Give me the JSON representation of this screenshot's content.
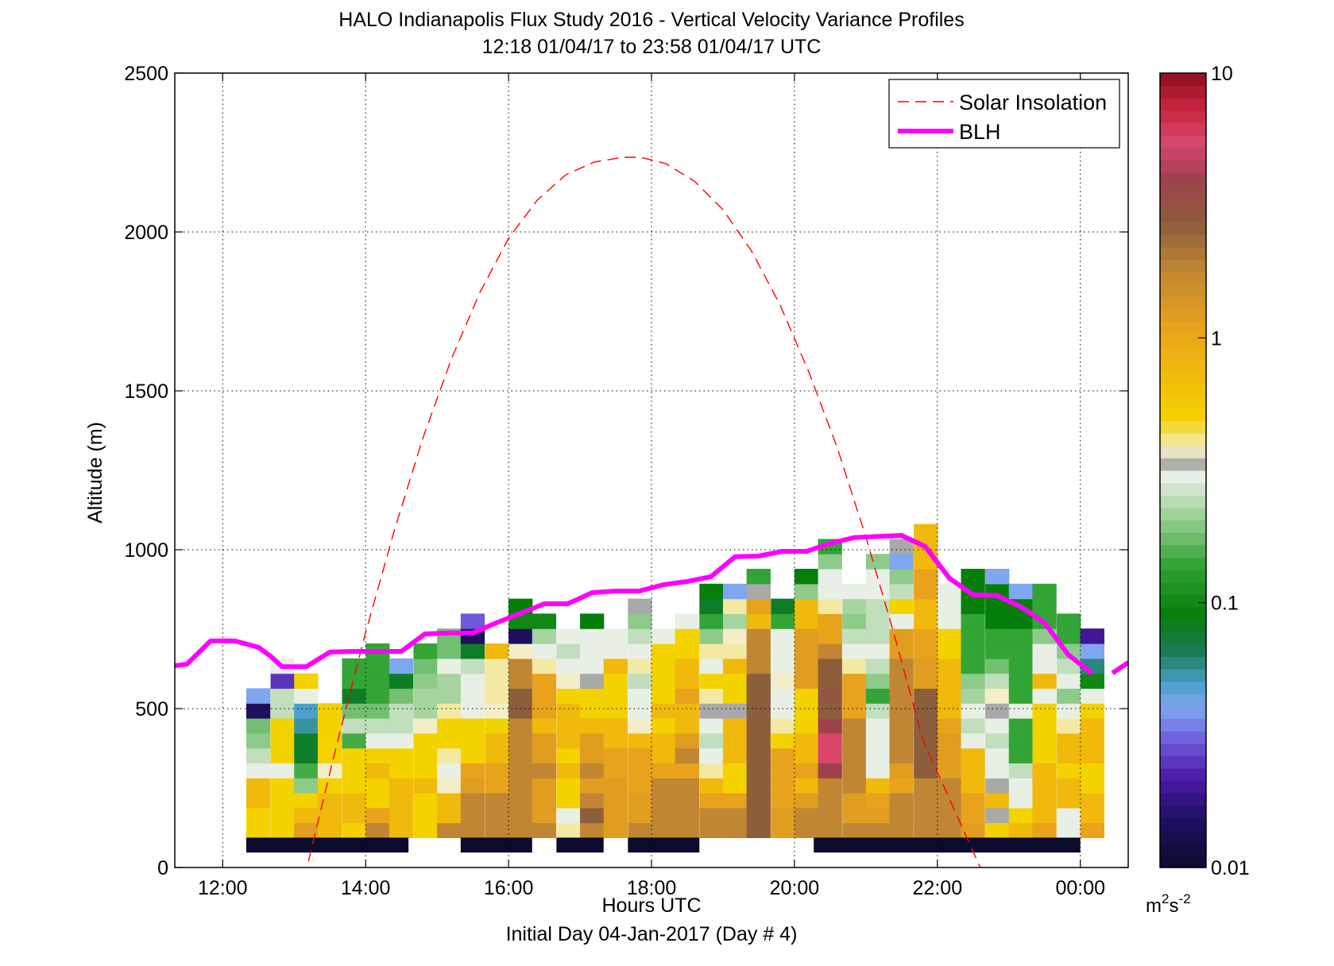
{
  "chart_data": {
    "type": "heatmap",
    "title": "HALO Indianapolis Flux Study 2016 - Vertical Velocity Variance Profiles",
    "subtitle": "12:18 01/04/17 to 23:58 01/04/17  UTC",
    "xlabel": "Hours UTC",
    "xlabel2": "Initial Day 04-Jan-2017 (Day # 4)",
    "ylabel": "Altitude (m)",
    "colorbar_unit": "m",
    "colorbar_unit_sup1": "2",
    "colorbar_unit_mid": "s",
    "colorbar_unit_sup2": "-2",
    "xlim": [
      11.33,
      24.67
    ],
    "ylim": [
      0,
      2500
    ],
    "grid": true,
    "x_ticks": [
      12,
      14,
      16,
      18,
      20,
      22,
      24
    ],
    "x_tick_labels": [
      "12:00",
      "14:00",
      "16:00",
      "18:00",
      "20:00",
      "22:00",
      "00:00"
    ],
    "y_ticks": [
      0,
      500,
      1000,
      1500,
      2000,
      2500
    ],
    "y_tick_labels": [
      "0",
      "500",
      "1000",
      "1500",
      "2000",
      "2500"
    ],
    "colorbar_scale": "log",
    "colorbar_range": [
      0.01,
      10
    ],
    "colorbar_ticks": [
      0.01,
      0.1,
      1,
      10
    ],
    "colorbar_tick_labels": [
      "0.01",
      "0.1",
      "1",
      "10"
    ],
    "colorbar_stops": [
      {
        "v": 0.01,
        "color": "#0b0b2e"
      },
      {
        "v": 0.015,
        "color": "#1e0f5e"
      },
      {
        "v": 0.022,
        "color": "#4d1aa8"
      },
      {
        "v": 0.03,
        "color": "#6f5ad8"
      },
      {
        "v": 0.04,
        "color": "#7fa6f0"
      },
      {
        "v": 0.05,
        "color": "#4aa0c8"
      },
      {
        "v": 0.065,
        "color": "#1e7a5a"
      },
      {
        "v": 0.09,
        "color": "#057f0a"
      },
      {
        "v": 0.14,
        "color": "#33a436"
      },
      {
        "v": 0.22,
        "color": "#a6d4a0"
      },
      {
        "v": 0.3,
        "color": "#e8efe4"
      },
      {
        "v": 0.33,
        "color": "#a9a9a9"
      },
      {
        "v": 0.38,
        "color": "#f4eec8"
      },
      {
        "v": 0.5,
        "color": "#f3d200"
      },
      {
        "v": 0.75,
        "color": "#f0b90c"
      },
      {
        "v": 1.1,
        "color": "#e8a21c"
      },
      {
        "v": 1.8,
        "color": "#c08633"
      },
      {
        "v": 2.7,
        "color": "#8c5e3c"
      },
      {
        "v": 4.0,
        "color": "#a0424e"
      },
      {
        "v": 5.5,
        "color": "#d8466e"
      },
      {
        "v": 7.5,
        "color": "#c4243c"
      },
      {
        "v": 10,
        "color": "#8e0c1c"
      }
    ],
    "bin_width_hours": 0.33,
    "bin_height_m": 47,
    "first_bin_altitude_m": 94,
    "columns": [
      {
        "t": 12.33,
        "v": [
          0.5,
          0.5,
          0.75,
          0.75,
          0.3,
          0.25,
          0.2,
          0.18,
          0.015,
          0.04
        ]
      },
      {
        "t": 12.67,
        "v": [
          0.5,
          0.5,
          0.5,
          0.5,
          0.3,
          0.5,
          0.5,
          0.5,
          0.25,
          0.25,
          0.025,
          0.3
        ]
      },
      {
        "t": 13.0,
        "v": [
          1.2,
          0.75,
          0.5,
          0.2,
          0.15,
          0.08,
          0.08,
          0.055,
          0.05,
          0.3,
          0.5
        ]
      },
      {
        "t": 13.33,
        "v": [
          0.75,
          0.75,
          0.75,
          0.5,
          0.38,
          0.5,
          0.5,
          0.5,
          0.5
        ]
      },
      {
        "t": 13.67,
        "v": [
          0.5,
          0.75,
          0.75,
          0.5,
          0.5,
          0.5,
          0.15,
          0.25,
          0.18,
          0.08,
          0.14,
          0.14
        ]
      },
      {
        "t": 14.0,
        "v": [
          1.8,
          1.1,
          0.5,
          0.5,
          0.75,
          0.5,
          0.3,
          0.25,
          0.18,
          0.14,
          0.14,
          0.14,
          0.14
        ]
      },
      {
        "t": 14.33,
        "v": [
          0.75,
          0.75,
          0.75,
          0.75,
          0.5,
          0.5,
          0.3,
          0.25,
          0.25,
          0.18,
          0.08,
          0.04
        ]
      },
      {
        "t": 14.67,
        "v": [
          0.5,
          0.5,
          0.5,
          0.75,
          0.5,
          0.5,
          0.5,
          0.38,
          0.22,
          0.22,
          0.2,
          0.18,
          0.14
        ]
      },
      {
        "t": 15.0,
        "v": [
          1.8,
          0.75,
          0.75,
          0.38,
          0.3,
          0.4,
          0.5,
          0.5,
          0.4,
          0.22,
          0.22,
          0.3,
          0.18,
          0.18
        ]
      },
      {
        "t": 15.33,
        "v": [
          1.8,
          1.8,
          1.8,
          1.2,
          1.1,
          0.5,
          0.5,
          0.5,
          0.3,
          0.3,
          0.3,
          0.25,
          0.08,
          0.015,
          0.03
        ]
      },
      {
        "t": 15.67,
        "v": [
          1.8,
          1.8,
          1.8,
          1.1,
          1.1,
          0.75,
          0.75,
          0.5,
          0.38,
          0.4,
          0.4,
          0.4,
          0.75
        ]
      },
      {
        "t": 16.0,
        "v": [
          1.8,
          1.8,
          1.8,
          1.8,
          1.8,
          1.8,
          1.8,
          1.8,
          2.7,
          2.7,
          1.8,
          1.8,
          0.38,
          0.015,
          0.1,
          0.09
        ]
      },
      {
        "t": 16.33,
        "v": [
          1.8,
          1.2,
          1.2,
          1.2,
          1.8,
          1.2,
          1.2,
          0.75,
          1.1,
          1.1,
          1.1,
          0.4,
          0.3,
          0.22,
          0.1
        ]
      },
      {
        "t": 16.67,
        "v": [
          0.4,
          0.3,
          0.5,
          0.5,
          0.75,
          0.5,
          0.75,
          0.75,
          0.75,
          0.5,
          0.38,
          0.3,
          0.25,
          0.3
        ]
      },
      {
        "t": 17.0,
        "v": [
          1.8,
          2.7,
          1.8,
          1.2,
          1.8,
          1.2,
          1.2,
          0.75,
          0.5,
          0.5,
          0.33,
          0.3,
          0.3,
          0.3,
          0.09
        ]
      },
      {
        "t": 17.33,
        "v": [
          1.2,
          1.2,
          1.2,
          1.2,
          1.1,
          1.1,
          0.75,
          0.75,
          0.5,
          0.5,
          0.5,
          0.75,
          0.3,
          0.3
        ]
      },
      {
        "t": 17.67,
        "v": [
          1.8,
          1.2,
          1.2,
          1.1,
          1.1,
          1.1,
          0.75,
          0.38,
          0.3,
          0.3,
          0.25,
          0.4,
          0.3,
          0.25,
          0.2,
          0.33
        ]
      },
      {
        "t": 18.0,
        "v": [
          1.8,
          1.8,
          1.8,
          1.8,
          1.1,
          0.75,
          0.75,
          0.5,
          0.75,
          0.5,
          0.5,
          0.5,
          0.5,
          0.3
        ]
      },
      {
        "t": 18.33,
        "v": [
          1.8,
          1.8,
          1.8,
          1.8,
          1.1,
          1.8,
          1.2,
          0.75,
          0.75,
          1.1,
          0.75,
          0.75,
          0.5,
          0.5,
          0.3
        ]
      },
      {
        "t": 18.67,
        "v": [
          1.8,
          1.8,
          1.1,
          0.75,
          0.4,
          0.3,
          0.25,
          0.3,
          0.33,
          0.4,
          0.5,
          0.3,
          0.4,
          0.2,
          0.14,
          0.08,
          0.09
        ]
      },
      {
        "t": 19.0,
        "v": [
          1.8,
          1.8,
          1.1,
          0.5,
          0.5,
          0.75,
          0.75,
          0.75,
          0.33,
          0.5,
          0.5,
          0.75,
          0.4,
          0.38,
          0.22,
          0.4,
          0.04
        ]
      },
      {
        "t": 19.33,
        "v": [
          2.7,
          2.7,
          2.7,
          2.7,
          2.7,
          2.7,
          2.7,
          2.7,
          2.7,
          2.7,
          2.7,
          1.8,
          1.8,
          1.8,
          0.75,
          1.1,
          0.33,
          0.14
        ]
      },
      {
        "t": 19.67,
        "v": [
          1.2,
          1.2,
          1.1,
          1.1,
          1.1,
          1.1,
          0.5,
          0.4,
          0.3,
          0.3,
          0.38,
          0.3,
          0.3,
          0.3,
          0.14,
          0.08
        ]
      },
      {
        "t": 20.0,
        "v": [
          1.8,
          1.8,
          1.2,
          0.75,
          1.1,
          0.75,
          0.75,
          0.5,
          0.5,
          0.5,
          1.2,
          1.2,
          1.2,
          1.2,
          0.75,
          0.75,
          0.2,
          0.09
        ]
      },
      {
        "t": 20.33,
        "v": [
          1.8,
          1.8,
          1.8,
          1.8,
          4.0,
          5.5,
          5.5,
          4.0,
          2.7,
          3.0,
          2.7,
          2.7,
          1.8,
          1.1,
          1.1,
          0.4,
          0.3,
          0.3,
          0.2,
          0.14
        ]
      },
      {
        "t": 20.67,
        "v": [
          1.8,
          1.2,
          1.2,
          1.8,
          1.8,
          1.8,
          1.8,
          1.8,
          1.1,
          1.1,
          1.1,
          0.4,
          0.3,
          0.25,
          0.2,
          0.22,
          0.3
        ]
      },
      {
        "t": 21.0,
        "v": [
          1.8,
          1.2,
          1.1,
          0.75,
          0.3,
          0.3,
          0.3,
          0.3,
          0.25,
          0.14,
          0.2,
          0.25,
          0.3,
          0.25,
          0.25,
          0.25,
          0.3,
          0.3,
          0.2
        ]
      },
      {
        "t": 21.33,
        "v": [
          1.8,
          1.8,
          1.8,
          1.1,
          1.2,
          1.8,
          1.8,
          1.8,
          1.8,
          1.8,
          1.8,
          1.8,
          1.2,
          1.2,
          0.3,
          0.5,
          0.25,
          0.2,
          0.04,
          0.33
        ]
      },
      {
        "t": 21.67,
        "v": [
          1.8,
          1.8,
          1.8,
          1.8,
          2.7,
          2.7,
          2.7,
          2.7,
          2.7,
          2.7,
          1.2,
          1.2,
          1.1,
          1.1,
          0.75,
          0.75,
          1.1,
          1.1,
          0.75,
          0.75,
          0.75
        ]
      },
      {
        "t": 22.0,
        "v": [
          1.8,
          1.8,
          1.8,
          1.8,
          1.2,
          1.2,
          1.2,
          1.1,
          0.75,
          0.75,
          0.75,
          0.75,
          0.5,
          0.5,
          0.3,
          0.3,
          0.3
        ]
      },
      {
        "t": 22.33,
        "v": [
          1.2,
          1.1,
          1.1,
          0.75,
          0.75,
          0.75,
          0.3,
          0.25,
          0.3,
          0.22,
          0.2,
          0.14,
          0.14,
          0.14,
          0.14,
          0.09,
          0.09,
          0.09
        ]
      },
      {
        "t": 22.67,
        "v": [
          0.5,
          0.33,
          0.75,
          0.33,
          0.3,
          0.3,
          0.25,
          0.3,
          0.33,
          0.38,
          0.25,
          0.18,
          0.14,
          0.14,
          0.09,
          0.09,
          0.09,
          0.04
        ]
      },
      {
        "t": 23.0,
        "v": [
          0.75,
          0.5,
          0.3,
          0.3,
          0.25,
          0.14,
          0.14,
          0.14,
          0.3,
          0.14,
          0.14,
          0.14,
          0.14,
          0.14,
          0.09,
          0.09,
          0.04
        ]
      },
      {
        "t": 23.33,
        "v": [
          1.1,
          0.75,
          0.75,
          0.75,
          0.75,
          0.5,
          0.5,
          0.5,
          0.5,
          0.3,
          0.75,
          0.3,
          0.3,
          0.2,
          0.14,
          0.14,
          0.14
        ]
      },
      {
        "t": 23.67,
        "v": [
          0.3,
          0.3,
          0.75,
          0.75,
          0.5,
          0.75,
          0.75,
          0.4,
          0.3,
          0.2,
          0.3,
          0.25,
          0.2,
          0.14,
          0.14
        ]
      },
      {
        "t": 24.0,
        "v": [
          1.1,
          0.75,
          0.75,
          0.5,
          0.5,
          0.75,
          0.75,
          0.75,
          0.5,
          0.3,
          0.1,
          0.06,
          0.04,
          0.02
        ]
      }
    ],
    "no_data_segments": [
      [
        12.33,
        14.6
      ],
      [
        15.33,
        16.33
      ],
      [
        16.67,
        17.33
      ],
      [
        17.67,
        18.67
      ],
      [
        20.27,
        24.0
      ]
    ],
    "series": [
      {
        "name": "Solar Insolation",
        "style": "dashed",
        "color": "#ff0000",
        "x": [
          13.2,
          13.6,
          14.0,
          14.4,
          14.8,
          15.2,
          15.6,
          16.0,
          16.4,
          16.8,
          17.2,
          17.6,
          17.85,
          18.2,
          18.6,
          19.0,
          19.4,
          19.8,
          20.2,
          20.6,
          21.0,
          21.4,
          21.8,
          22.2,
          22.6
        ],
        "y": [
          20,
          390,
          740,
          1060,
          1350,
          1600,
          1810,
          1980,
          2100,
          2180,
          2220,
          2235,
          2235,
          2215,
          2160,
          2070,
          1940,
          1770,
          1560,
          1320,
          1040,
          730,
          400,
          200,
          0
        ]
      },
      {
        "name": "BLH",
        "style": "solid",
        "color": "#ff00ff",
        "x": [
          11.33,
          11.5,
          11.83,
          12.17,
          12.5,
          12.67,
          12.83,
          13.17,
          13.5,
          13.83,
          14.17,
          14.5,
          14.83,
          15.17,
          15.5,
          15.83,
          16.17,
          16.5,
          16.83,
          17.17,
          17.5,
          17.83,
          18.17,
          18.5,
          18.83,
          19.17,
          19.5,
          19.83,
          20.17,
          20.5,
          20.83,
          21.17,
          21.5,
          21.83,
          22.17,
          22.5,
          22.83,
          23.17,
          23.5,
          23.83,
          24.0,
          24.17
        ],
        "y": [
          635,
          640,
          713,
          713,
          693,
          665,
          632,
          632,
          678,
          680,
          680,
          680,
          735,
          738,
          738,
          770,
          800,
          830,
          830,
          865,
          870,
          870,
          890,
          900,
          915,
          978,
          980,
          995,
          995,
          1020,
          1038,
          1042,
          1045,
          1010,
          910,
          858,
          856,
          820,
          770,
          670,
          640,
          610
        ]
      },
      {
        "name": "",
        "style": "solid",
        "color": "#ff00ff",
        "x": [
          24.45,
          24.67
        ],
        "y": [
          612,
          645
        ]
      }
    ],
    "legend": {
      "placement": "top-right",
      "entries": [
        "Solar Insolation",
        "BLH"
      ]
    }
  }
}
